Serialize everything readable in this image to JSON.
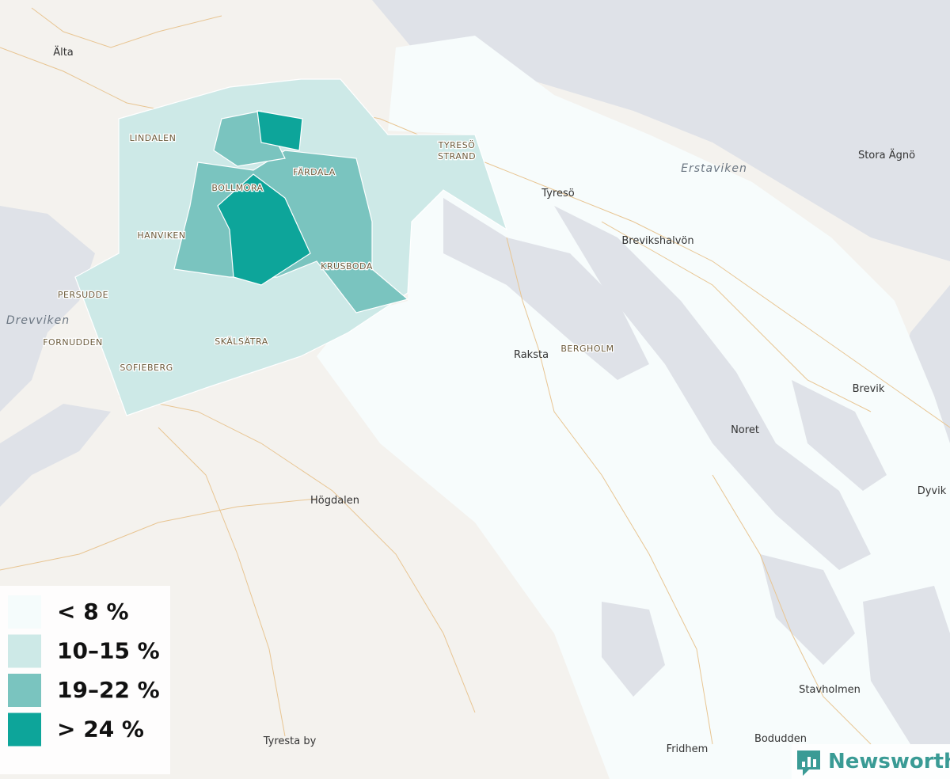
{
  "legend": {
    "items": [
      {
        "label": "< 8 %",
        "color": "#f5fcfc"
      },
      {
        "label": "10–15 %",
        "color": "#cde9e7"
      },
      {
        "label": "19–22 %",
        "color": "#7ac4bf"
      },
      {
        "label": "> 24 %",
        "color": "#0da59a"
      }
    ]
  },
  "places": [
    "Älta",
    "Tyresö",
    "Stora Ägnö",
    "Brevikshalvön",
    "Raksta",
    "Brevik",
    "Noret",
    "Dyvik",
    "Högdalen",
    "Stavholmen",
    "Bodudden",
    "Fridhem",
    "Tyresta by"
  ],
  "districts": [
    "LINDALEN",
    "FÄRDALA",
    "BOLLMORA",
    "HANVIKEN",
    "KRUSBODA",
    "PERSUDDE",
    "FORNUDDEN",
    "SKÄLSÄTRA",
    "SOFIEBERG",
    "BERGHOLM"
  ],
  "district_two_line": [
    "TYRESÖ",
    "STRAND"
  ],
  "waters": [
    "Erstaviken",
    "Drevviken"
  ],
  "brand": "Newsworthy"
}
